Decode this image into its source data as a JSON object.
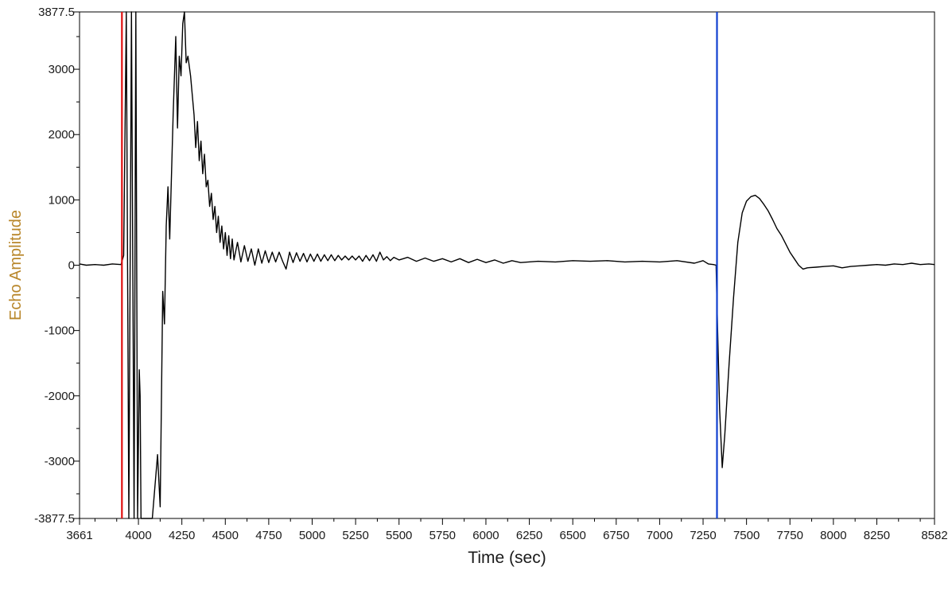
{
  "chart_data": {
    "type": "line",
    "title": "",
    "xlabel": "Time (sec)",
    "ylabel": "Echo Amplitude",
    "xlim": [
      3661,
      8582
    ],
    "ylim": [
      -3877.5,
      3877.5
    ],
    "x_ticks": [
      3661,
      4000,
      4250,
      4500,
      4750,
      5000,
      5250,
      5500,
      5750,
      6000,
      6250,
      6500,
      6750,
      7000,
      7250,
      7500,
      7750,
      8000,
      8250,
      8582
    ],
    "x_tick_labels": [
      "3661",
      "4000",
      "4250",
      "4500",
      "4750",
      "5000",
      "5250",
      "5500",
      "5750",
      "6000",
      "6250",
      "6500",
      "6750",
      "7000",
      "7250",
      "7500",
      "7750",
      "8000",
      "8250",
      "8582"
    ],
    "y_ticks": [
      -3877.5,
      -3000,
      -2000,
      -1000,
      0,
      1000,
      2000,
      3000,
      3877.5
    ],
    "y_tick_labels": [
      "-3877.5",
      "-3000",
      "-2000",
      "-1000",
      "0",
      "1000",
      "2000",
      "3000",
      "3877.5"
    ],
    "grid": false,
    "colors": {
      "signal": "#000000",
      "red_marker": "#e01010",
      "blue_marker": "#1040d0",
      "ylabel_color": "#b8862a"
    },
    "markers": [
      {
        "x": 3905,
        "color": "#e01010"
      },
      {
        "x": 7330,
        "color": "#1040d0"
      }
    ],
    "series": [
      {
        "values": [
          [
            3661,
            20
          ],
          [
            3700,
            0
          ],
          [
            3750,
            10
          ],
          [
            3800,
            0
          ],
          [
            3850,
            20
          ],
          [
            3900,
            10
          ],
          [
            3915,
            150
          ],
          [
            3930,
            3877.5
          ],
          [
            3945,
            -3877.5
          ],
          [
            3960,
            3877.5
          ],
          [
            3975,
            -3877.5
          ],
          [
            3985,
            3877.5
          ],
          [
            3995,
            -3877.5
          ],
          [
            4005,
            -1600
          ],
          [
            4010,
            -2000
          ],
          [
            4015,
            -3877.5
          ],
          [
            4050,
            -3877.5
          ],
          [
            4080,
            -3877.5
          ],
          [
            4110,
            -2900
          ],
          [
            4125,
            -3700
          ],
          [
            4140,
            -400
          ],
          [
            4150,
            -900
          ],
          [
            4160,
            600
          ],
          [
            4170,
            1200
          ],
          [
            4180,
            400
          ],
          [
            4200,
            2300
          ],
          [
            4215,
            3500
          ],
          [
            4225,
            2100
          ],
          [
            4235,
            3200
          ],
          [
            4245,
            2900
          ],
          [
            4255,
            3700
          ],
          [
            4265,
            3877.5
          ],
          [
            4275,
            3100
          ],
          [
            4285,
            3200
          ],
          [
            4300,
            2900
          ],
          [
            4310,
            2600
          ],
          [
            4320,
            2300
          ],
          [
            4330,
            1800
          ],
          [
            4340,
            2200
          ],
          [
            4350,
            1600
          ],
          [
            4360,
            1900
          ],
          [
            4370,
            1400
          ],
          [
            4380,
            1700
          ],
          [
            4390,
            1200
          ],
          [
            4400,
            1300
          ],
          [
            4410,
            900
          ],
          [
            4420,
            1100
          ],
          [
            4430,
            700
          ],
          [
            4440,
            900
          ],
          [
            4450,
            500
          ],
          [
            4460,
            750
          ],
          [
            4470,
            350
          ],
          [
            4480,
            600
          ],
          [
            4490,
            250
          ],
          [
            4500,
            500
          ],
          [
            4510,
            150
          ],
          [
            4520,
            450
          ],
          [
            4530,
            100
          ],
          [
            4540,
            400
          ],
          [
            4550,
            80
          ],
          [
            4570,
            350
          ],
          [
            4590,
            50
          ],
          [
            4610,
            300
          ],
          [
            4630,
            60
          ],
          [
            4650,
            250
          ],
          [
            4670,
            0
          ],
          [
            4690,
            250
          ],
          [
            4710,
            30
          ],
          [
            4730,
            220
          ],
          [
            4750,
            40
          ],
          [
            4770,
            200
          ],
          [
            4790,
            50
          ],
          [
            4810,
            200
          ],
          [
            4830,
            60
          ],
          [
            4850,
            -60
          ],
          [
            4870,
            200
          ],
          [
            4890,
            40
          ],
          [
            4910,
            190
          ],
          [
            4930,
            60
          ],
          [
            4950,
            180
          ],
          [
            4970,
            50
          ],
          [
            4990,
            170
          ],
          [
            5010,
            60
          ],
          [
            5030,
            170
          ],
          [
            5050,
            60
          ],
          [
            5070,
            160
          ],
          [
            5090,
            70
          ],
          [
            5110,
            160
          ],
          [
            5130,
            70
          ],
          [
            5150,
            150
          ],
          [
            5170,
            80
          ],
          [
            5190,
            140
          ],
          [
            5210,
            80
          ],
          [
            5230,
            140
          ],
          [
            5250,
            80
          ],
          [
            5270,
            140
          ],
          [
            5290,
            60
          ],
          [
            5310,
            150
          ],
          [
            5330,
            70
          ],
          [
            5350,
            160
          ],
          [
            5370,
            60
          ],
          [
            5390,
            200
          ],
          [
            5410,
            80
          ],
          [
            5430,
            130
          ],
          [
            5450,
            70
          ],
          [
            5470,
            120
          ],
          [
            5500,
            80
          ],
          [
            5550,
            120
          ],
          [
            5600,
            60
          ],
          [
            5650,
            110
          ],
          [
            5700,
            60
          ],
          [
            5750,
            100
          ],
          [
            5800,
            50
          ],
          [
            5850,
            100
          ],
          [
            5900,
            40
          ],
          [
            5950,
            90
          ],
          [
            6000,
            40
          ],
          [
            6050,
            80
          ],
          [
            6100,
            30
          ],
          [
            6150,
            70
          ],
          [
            6200,
            40
          ],
          [
            6300,
            60
          ],
          [
            6400,
            50
          ],
          [
            6500,
            70
          ],
          [
            6600,
            60
          ],
          [
            6700,
            70
          ],
          [
            6800,
            50
          ],
          [
            6900,
            60
          ],
          [
            7000,
            50
          ],
          [
            7100,
            70
          ],
          [
            7200,
            30
          ],
          [
            7250,
            70
          ],
          [
            7280,
            20
          ],
          [
            7310,
            10
          ],
          [
            7325,
            0
          ],
          [
            7330,
            -600
          ],
          [
            7345,
            -2200
          ],
          [
            7360,
            -3100
          ],
          [
            7375,
            -2600
          ],
          [
            7400,
            -1500
          ],
          [
            7425,
            -500
          ],
          [
            7450,
            350
          ],
          [
            7475,
            800
          ],
          [
            7500,
            980
          ],
          [
            7525,
            1050
          ],
          [
            7550,
            1070
          ],
          [
            7575,
            1020
          ],
          [
            7600,
            930
          ],
          [
            7625,
            830
          ],
          [
            7650,
            700
          ],
          [
            7675,
            560
          ],
          [
            7700,
            460
          ],
          [
            7725,
            330
          ],
          [
            7750,
            200
          ],
          [
            7775,
            100
          ],
          [
            7800,
            0
          ],
          [
            7825,
            -60
          ],
          [
            7850,
            -40
          ],
          [
            7900,
            -30
          ],
          [
            7950,
            -20
          ],
          [
            8000,
            -10
          ],
          [
            8050,
            -40
          ],
          [
            8100,
            -20
          ],
          [
            8150,
            -10
          ],
          [
            8200,
            0
          ],
          [
            8250,
            10
          ],
          [
            8300,
            0
          ],
          [
            8350,
            20
          ],
          [
            8400,
            10
          ],
          [
            8450,
            30
          ],
          [
            8500,
            10
          ],
          [
            8550,
            20
          ],
          [
            8582,
            10
          ]
        ]
      }
    ]
  }
}
